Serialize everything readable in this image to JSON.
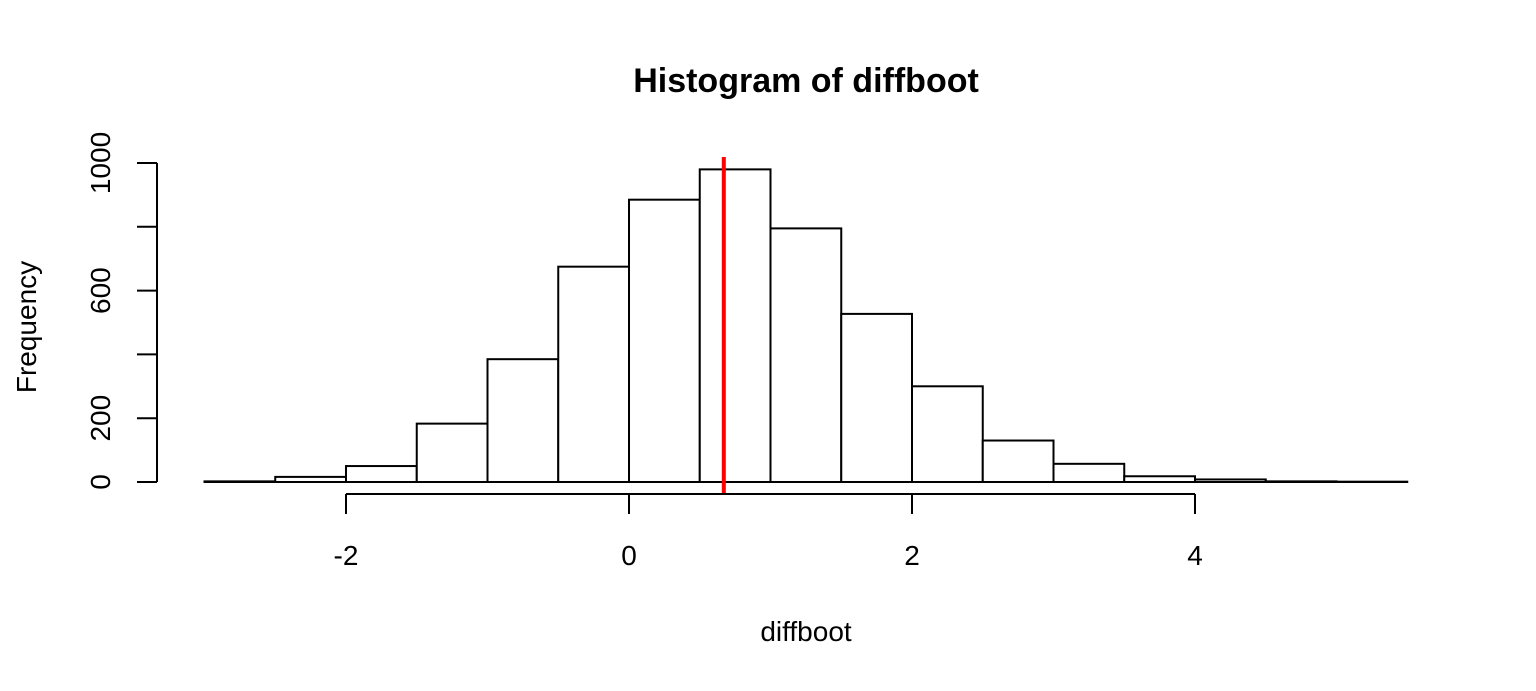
{
  "chart_data": {
    "type": "bar",
    "title": "Histogram of diffboot",
    "xlabel": "diffboot",
    "ylabel": "Frequency",
    "bins": [
      {
        "from": -3.0,
        "to": -2.5,
        "count": 2
      },
      {
        "from": -2.5,
        "to": -2.0,
        "count": 16
      },
      {
        "from": -2.0,
        "to": -1.5,
        "count": 50
      },
      {
        "from": -1.5,
        "to": -1.0,
        "count": 183
      },
      {
        "from": -1.0,
        "to": -0.5,
        "count": 385
      },
      {
        "from": -0.5,
        "to": 0.0,
        "count": 675
      },
      {
        "from": 0.0,
        "to": 0.5,
        "count": 885
      },
      {
        "from": 0.5,
        "to": 1.0,
        "count": 980
      },
      {
        "from": 1.0,
        "to": 1.5,
        "count": 795
      },
      {
        "from": 1.5,
        "to": 2.0,
        "count": 527
      },
      {
        "from": 2.0,
        "to": 2.5,
        "count": 300
      },
      {
        "from": 2.5,
        "to": 3.0,
        "count": 130
      },
      {
        "from": 3.0,
        "to": 3.5,
        "count": 57
      },
      {
        "from": 3.5,
        "to": 4.0,
        "count": 18
      },
      {
        "from": 4.0,
        "to": 4.5,
        "count": 8
      },
      {
        "from": 4.5,
        "to": 5.0,
        "count": 2
      },
      {
        "from": 5.0,
        "to": 5.5,
        "count": 1
      }
    ],
    "x_ticks": [
      -2,
      0,
      2,
      4
    ],
    "y_ticks": [
      0,
      200,
      600,
      1000
    ],
    "xlim": [
      -3.0,
      5.5
    ],
    "ylim": [
      0,
      1000
    ],
    "vline": {
      "x": 0.67,
      "color": "#ff0000"
    },
    "bar_fill": "#ffffff",
    "bar_stroke": "#000000",
    "grid": false,
    "legend": "none"
  }
}
